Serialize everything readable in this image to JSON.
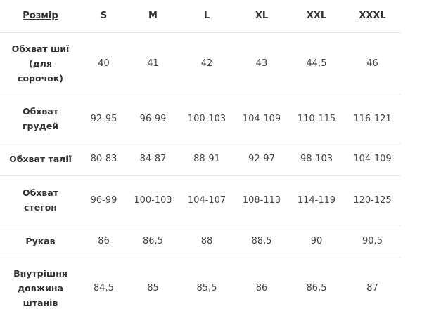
{
  "table": {
    "header": [
      "Розмір",
      "S",
      "M",
      "L",
      "XL",
      "XXL",
      "XXXL"
    ],
    "rows": [
      {
        "label": [
          "Обхват шиї",
          "(для",
          "сорочок)"
        ],
        "values": [
          "40",
          "41",
          "42",
          "43",
          "44,5",
          "46"
        ]
      },
      {
        "label": [
          "Обхват",
          "грудей"
        ],
        "values": [
          "92-95",
          "96-99",
          "100-103",
          "104-109",
          "110-115",
          "116-121"
        ]
      },
      {
        "label": [
          "Обхват талії"
        ],
        "values": [
          "80-83",
          "84-87",
          "88-91",
          "92-97",
          "98-103",
          "104-109"
        ]
      },
      {
        "label": [
          "Обхват",
          "стегон"
        ],
        "values": [
          "96-99",
          "100-103",
          "104-107",
          "108-113",
          "114-119",
          "120-125"
        ]
      },
      {
        "label": [
          "Рукав"
        ],
        "values": [
          "86",
          "86,5",
          "88",
          "88,5",
          "90",
          "90,5"
        ]
      },
      {
        "label": [
          "Внутрішня",
          "довжина",
          "штанів"
        ],
        "values": [
          "84,5",
          "85",
          "85,5",
          "86",
          "86,5",
          "87"
        ]
      }
    ]
  }
}
